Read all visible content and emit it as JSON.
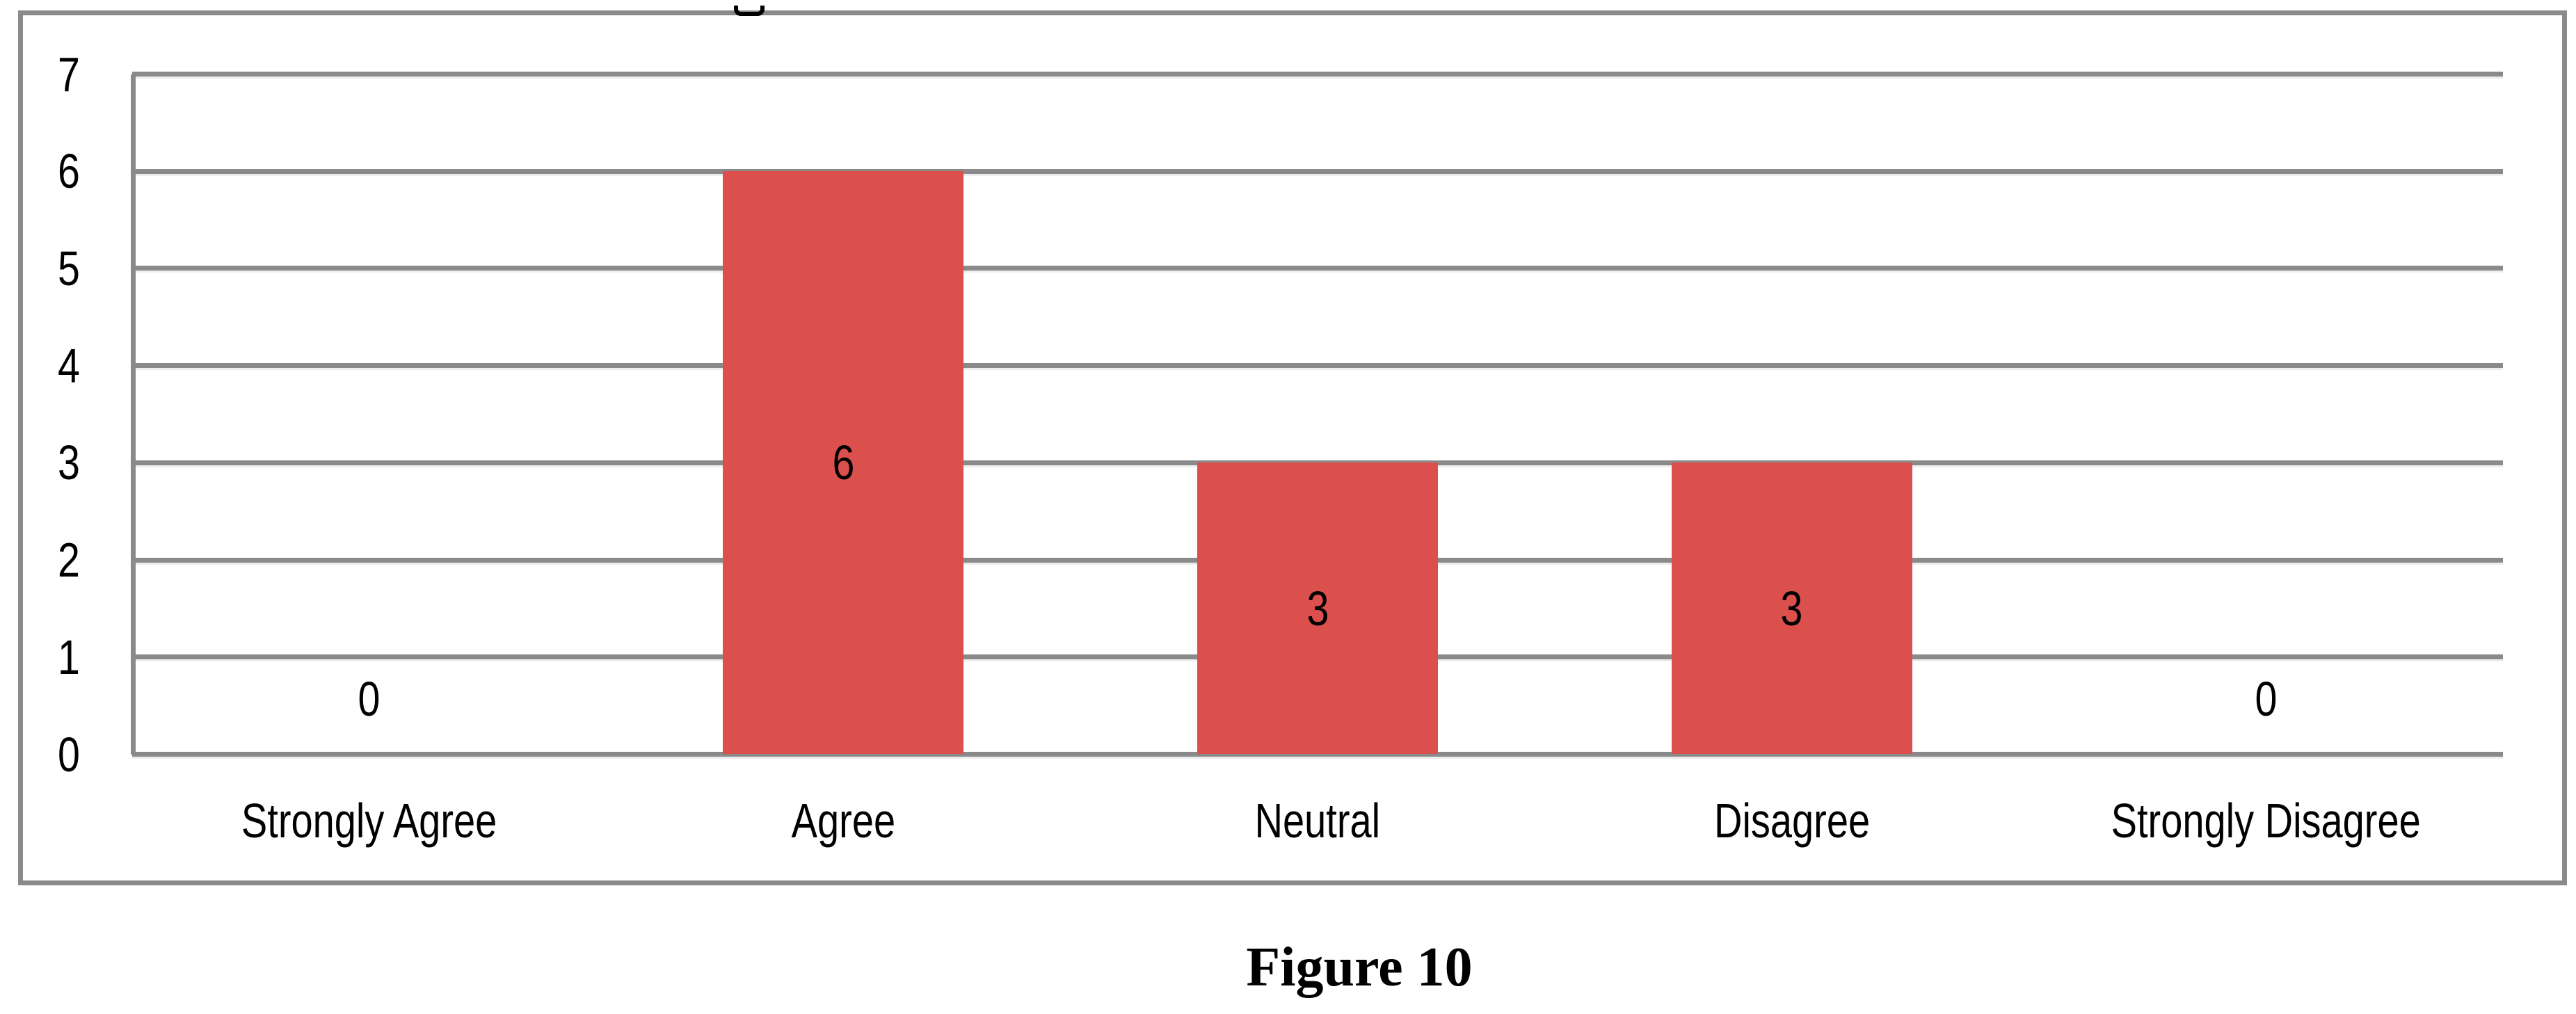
{
  "figure": {
    "caption": "Figure 10",
    "clipped_title_note": "bottom fragment of a cropped title glyph"
  },
  "colors": {
    "bar": "#DB504D",
    "grid": "#8A8A8A",
    "frame": "#8A8A8A",
    "text": "#000000",
    "background": "#FFFFFF"
  },
  "chart_data": {
    "type": "bar",
    "title": "",
    "xlabel": "",
    "ylabel": "",
    "categories": [
      "Strongly Agree",
      "Agree",
      "Neutral",
      "Disagree",
      "Strongly Disagree"
    ],
    "values": [
      0,
      6,
      3,
      3,
      0
    ],
    "data_labels": [
      "0",
      "6",
      "3",
      "3",
      "0"
    ],
    "yticks": [
      0,
      1,
      2,
      3,
      4,
      5,
      6,
      7
    ],
    "ylim": [
      0,
      7
    ],
    "grid": "horizontal-only",
    "legend": "none",
    "bar_fill": "#DB504D",
    "plot_border": "left-axis-and-outer-frame"
  }
}
